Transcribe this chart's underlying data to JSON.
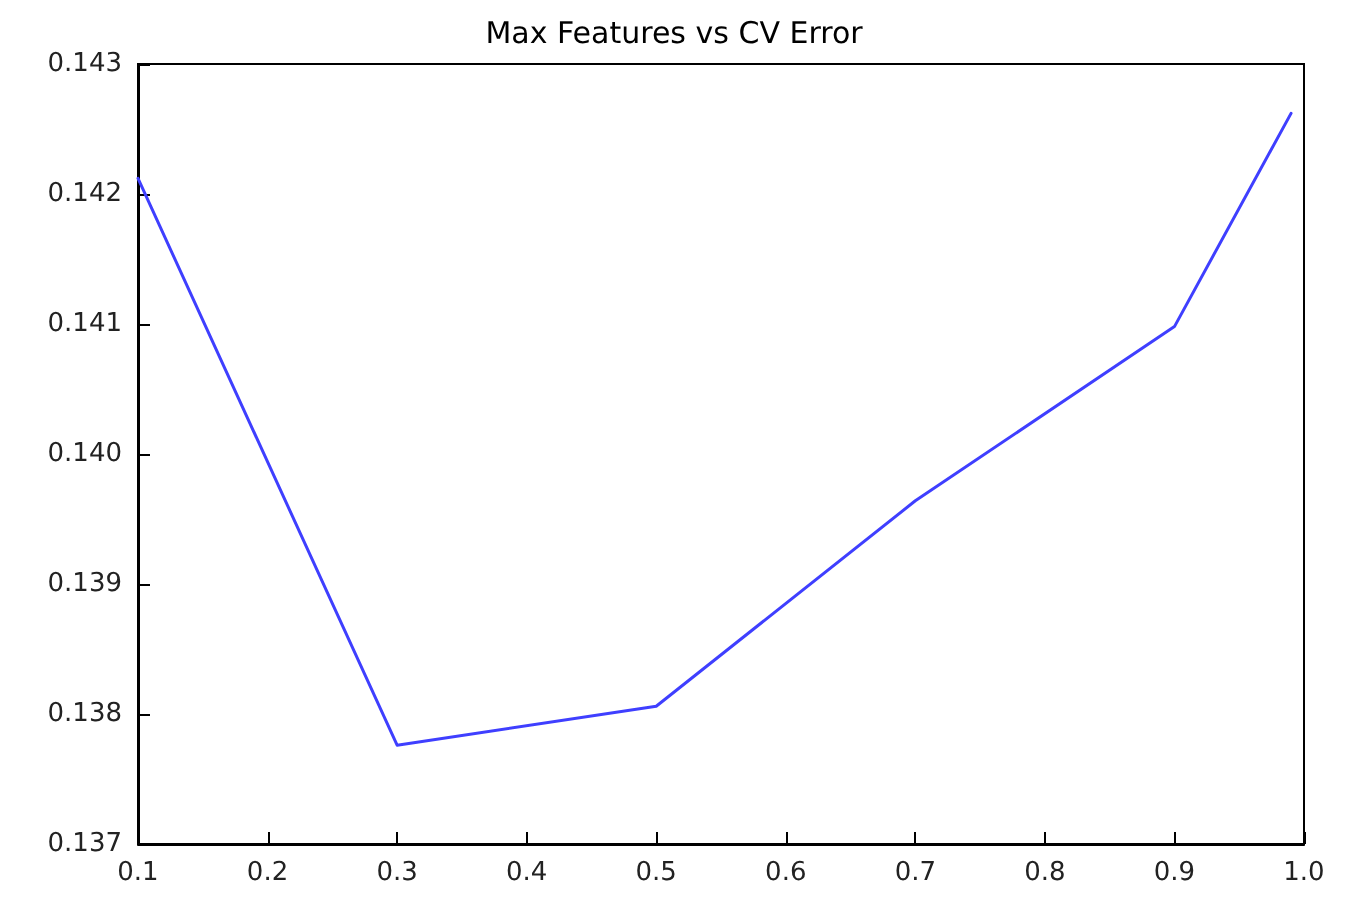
{
  "chart_data": {
    "type": "line",
    "title": "Max Features vs CV Error",
    "x": [
      0.1,
      0.3,
      0.5,
      0.7,
      0.9,
      0.99
    ],
    "series": [
      {
        "color": "#3f3fff",
        "values": [
          0.14212,
          0.13776,
          0.13806,
          0.13964,
          0.14098,
          0.14262
        ]
      }
    ],
    "xlim": [
      0.1,
      1.0
    ],
    "xticks": [
      0.1,
      0.2,
      0.3,
      0.4,
      0.5,
      0.6,
      0.7,
      0.8,
      0.9,
      {
        "value": 1.0,
        "label": "1.0"
      }
    ],
    "ylim": [
      0.137,
      0.143
    ],
    "yticks": [
      0.137,
      0.138,
      0.139,
      {
        "value": 0.14,
        "label": "0.140"
      },
      0.141,
      0.142,
      0.143
    ],
    "grid": false,
    "marker": "none",
    "line_style": "solid"
  }
}
